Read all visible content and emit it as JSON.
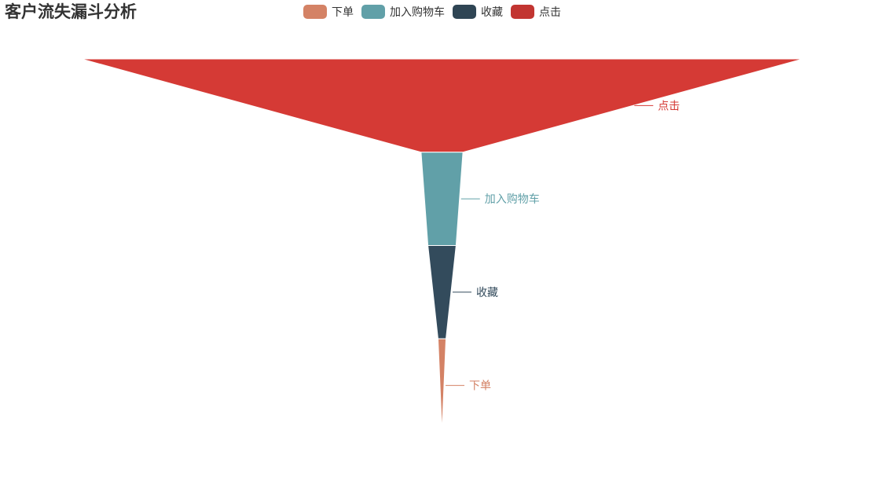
{
  "chart_data": {
    "type": "funnel",
    "title": "客户流失漏斗分析",
    "legend": {
      "position": "top-center",
      "items": [
        {
          "name": "下单",
          "color": "#d48265"
        },
        {
          "name": "加入购物车",
          "color": "#61a0a8"
        },
        {
          "name": "收藏",
          "color": "#2f4554"
        },
        {
          "name": "点击",
          "color": "#c23531"
        }
      ]
    },
    "sort": "descending",
    "categories": [
      "点击",
      "加入购物车",
      "收藏",
      "下单"
    ],
    "values": [
      100,
      5.8,
      3.9,
      1.1
    ],
    "colors": {
      "点击": "#d53a35",
      "加入购物车": "#61a0a8",
      "收藏": "#334b5c",
      "下单": "#d48265"
    }
  }
}
